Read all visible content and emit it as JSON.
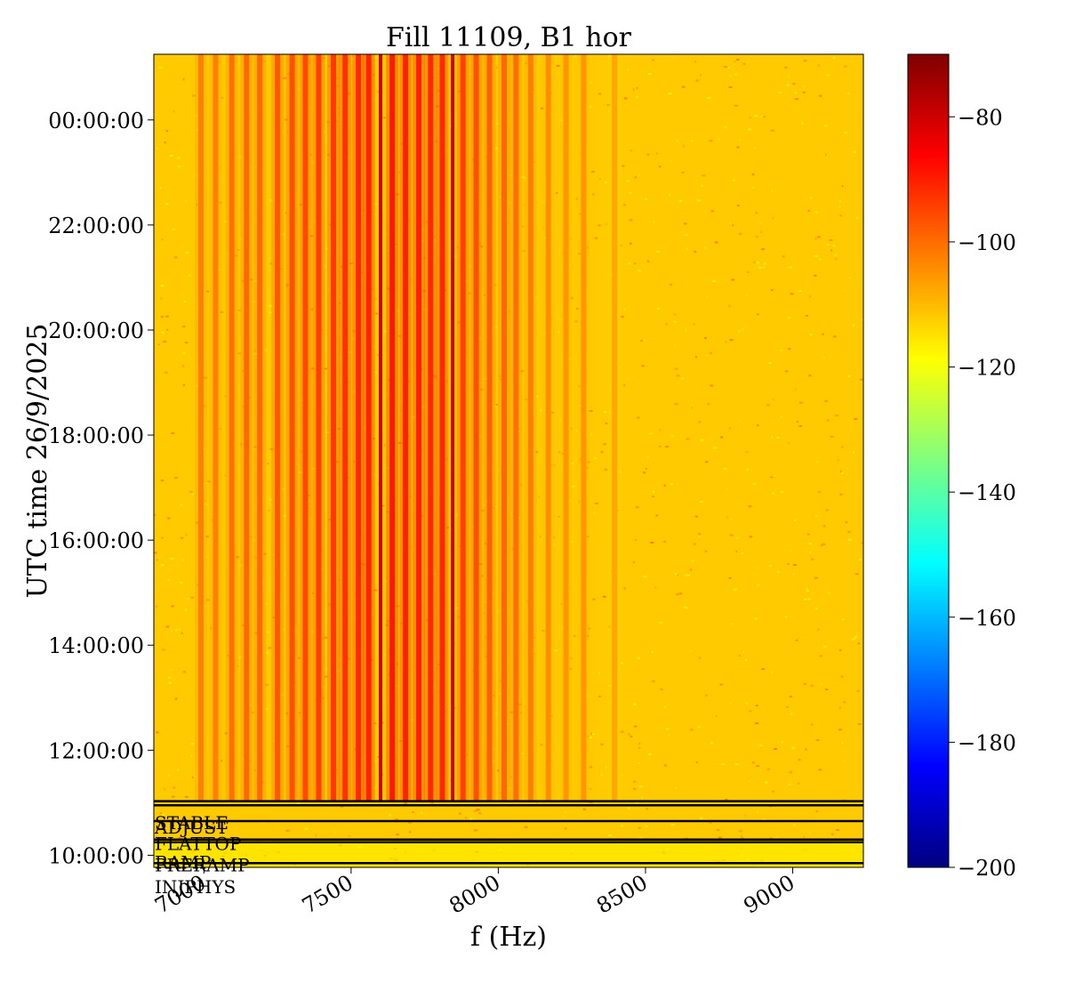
{
  "chart_data": {
    "type": "heatmap",
    "title": "Fill 11109, B1 hor",
    "xlabel": "f (Hz)",
    "ylabel": "UTC time 26/9/2025",
    "xlim": [
      6830,
      9240
    ],
    "ylim_hours": [
      9.77,
      25.25
    ],
    "x_ticks": [
      {
        "value": 7000,
        "label": "7000"
      },
      {
        "value": 7500,
        "label": "7500"
      },
      {
        "value": 8000,
        "label": "8000"
      },
      {
        "value": 8500,
        "label": "8500"
      },
      {
        "value": 9000,
        "label": "9000"
      }
    ],
    "y_ticks": [
      {
        "hour": 10,
        "label": "10:00:00"
      },
      {
        "hour": 12,
        "label": "12:00:00"
      },
      {
        "hour": 14,
        "label": "14:00:00"
      },
      {
        "hour": 16,
        "label": "16:00:00"
      },
      {
        "hour": 18,
        "label": "18:00:00"
      },
      {
        "hour": 20,
        "label": "20:00:00"
      },
      {
        "hour": 22,
        "label": "22:00:00"
      },
      {
        "hour": 24,
        "label": "00:00:00"
      }
    ],
    "colorbar": {
      "colormap": "jet",
      "range": [
        -200,
        -70
      ],
      "ticks": [
        {
          "value": -80,
          "label": "−80"
        },
        {
          "value": -100,
          "label": "−100"
        },
        {
          "value": -120,
          "label": "−120"
        },
        {
          "value": -140,
          "label": "−140"
        },
        {
          "value": -160,
          "label": "−160"
        },
        {
          "value": -180,
          "label": "−180"
        },
        {
          "value": -200,
          "label": "−200"
        }
      ]
    },
    "background_level": -112,
    "harmonic_lines": [
      {
        "freq": 6990,
        "level": -98
      },
      {
        "freq": 7040,
        "level": -98
      },
      {
        "freq": 7095,
        "level": -96
      },
      {
        "freq": 7145,
        "level": -95
      },
      {
        "freq": 7190,
        "level": -95
      },
      {
        "freq": 7250,
        "level": -93
      },
      {
        "freq": 7300,
        "level": -92
      },
      {
        "freq": 7345,
        "level": -91
      },
      {
        "freq": 7390,
        "level": -90
      },
      {
        "freq": 7440,
        "level": -89
      },
      {
        "freq": 7480,
        "level": -88
      },
      {
        "freq": 7525,
        "level": -87
      },
      {
        "freq": 7560,
        "level": -86
      },
      {
        "freq": 7600,
        "level": -80
      },
      {
        "freq": 7640,
        "level": -84
      },
      {
        "freq": 7685,
        "level": -86
      },
      {
        "freq": 7730,
        "level": -86
      },
      {
        "freq": 7770,
        "level": -87
      },
      {
        "freq": 7810,
        "level": -87
      },
      {
        "freq": 7845,
        "level": -80
      },
      {
        "freq": 7880,
        "level": -90
      },
      {
        "freq": 7925,
        "level": -92
      },
      {
        "freq": 7970,
        "level": -94
      },
      {
        "freq": 8020,
        "level": -95
      },
      {
        "freq": 8060,
        "level": -96
      },
      {
        "freq": 8110,
        "level": -98
      },
      {
        "freq": 8170,
        "level": -100
      },
      {
        "freq": 8230,
        "level": -101
      },
      {
        "freq": 8290,
        "level": -101
      },
      {
        "freq": 8395,
        "level": -103
      }
    ],
    "beam_modes": [
      {
        "label": "INJPHYS",
        "hour": 9.85
      },
      {
        "label": "PRERAMP",
        "hour": 10.25
      },
      {
        "label": "RAMP",
        "hour": 10.3
      },
      {
        "label": "FLATTOP",
        "hour": 10.65
      },
      {
        "label": "ADJUST",
        "hour": 10.95
      },
      {
        "label": "STABLE",
        "hour": 11.03
      }
    ]
  }
}
